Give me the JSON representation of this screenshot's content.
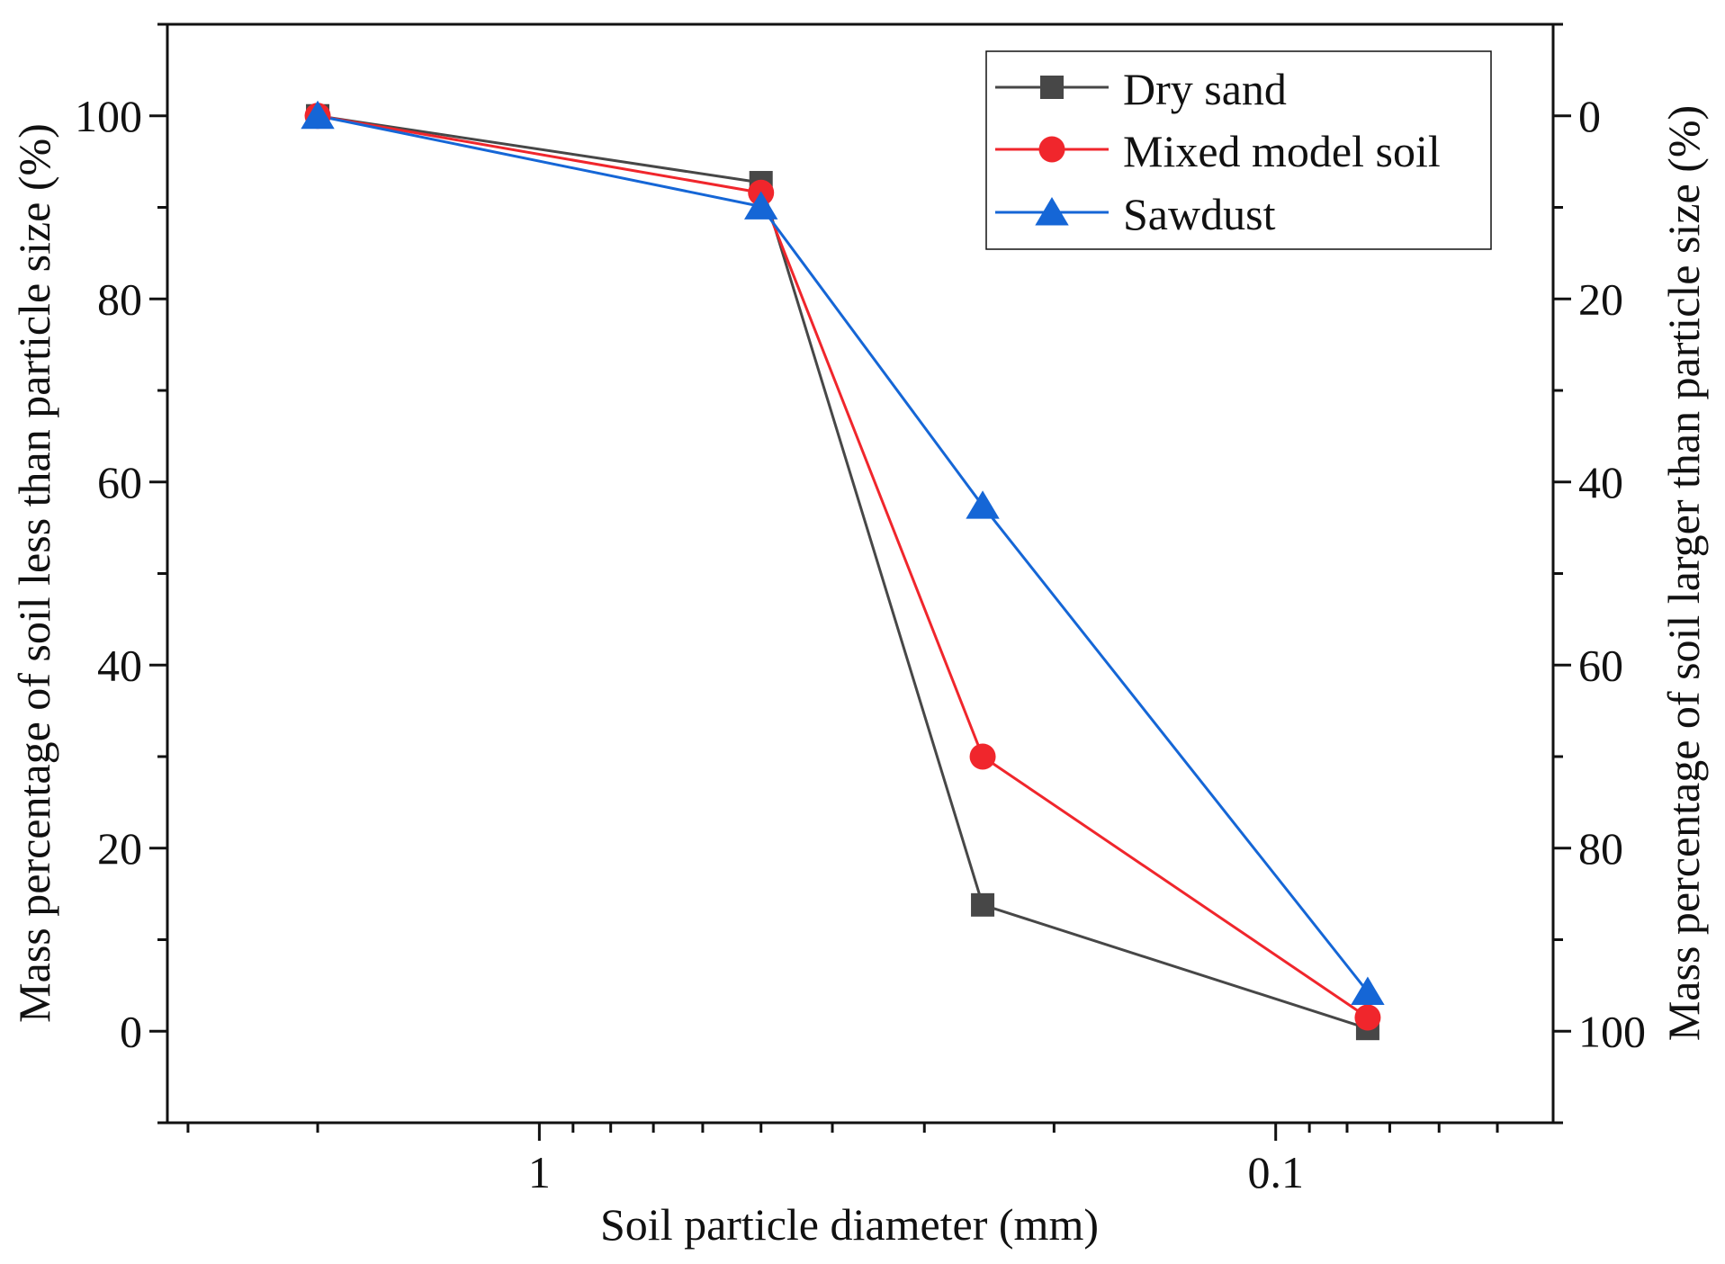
{
  "chart_data": {
    "type": "line",
    "title": "",
    "xlabel": "Soil particle diameter (mm)",
    "ylabel": "Mass percentage of soil less than particle size (%)",
    "y2label": "Mass percentage of soil larger than particle size (%)",
    "x_scale": "log",
    "x_reversed": true,
    "xlim": [
      3.2,
      0.042
    ],
    "ylim": [
      -10,
      110
    ],
    "y2lim": [
      110,
      -10
    ],
    "x_ticks": [
      1,
      0.1
    ],
    "x_tick_labels": [
      "1",
      "0.1"
    ],
    "y_ticks": [
      0,
      20,
      40,
      60,
      80,
      100
    ],
    "y_tick_labels": [
      "0",
      "20",
      "40",
      "60",
      "80",
      "100"
    ],
    "y2_ticks": [
      100,
      80,
      60,
      40,
      20,
      0
    ],
    "y2_tick_labels": [
      "100",
      "80",
      "60",
      "40",
      "20",
      "0"
    ],
    "legend_position": "top-right",
    "grid": false,
    "x": [
      2,
      0.5,
      0.25,
      0.075
    ],
    "series": [
      {
        "name": "Dry sand",
        "values": [
          100,
          92.7,
          13.8,
          0.3
        ],
        "color": "#474747",
        "marker": "square"
      },
      {
        "name": "Mixed model soil",
        "values": [
          100,
          91.6,
          30.0,
          1.5
        ],
        "color": "#f0262c",
        "marker": "circle"
      },
      {
        "name": "Sawdust",
        "values": [
          100,
          90.1,
          57.4,
          4.3
        ],
        "color": "#1566d6",
        "marker": "triangle"
      }
    ]
  }
}
